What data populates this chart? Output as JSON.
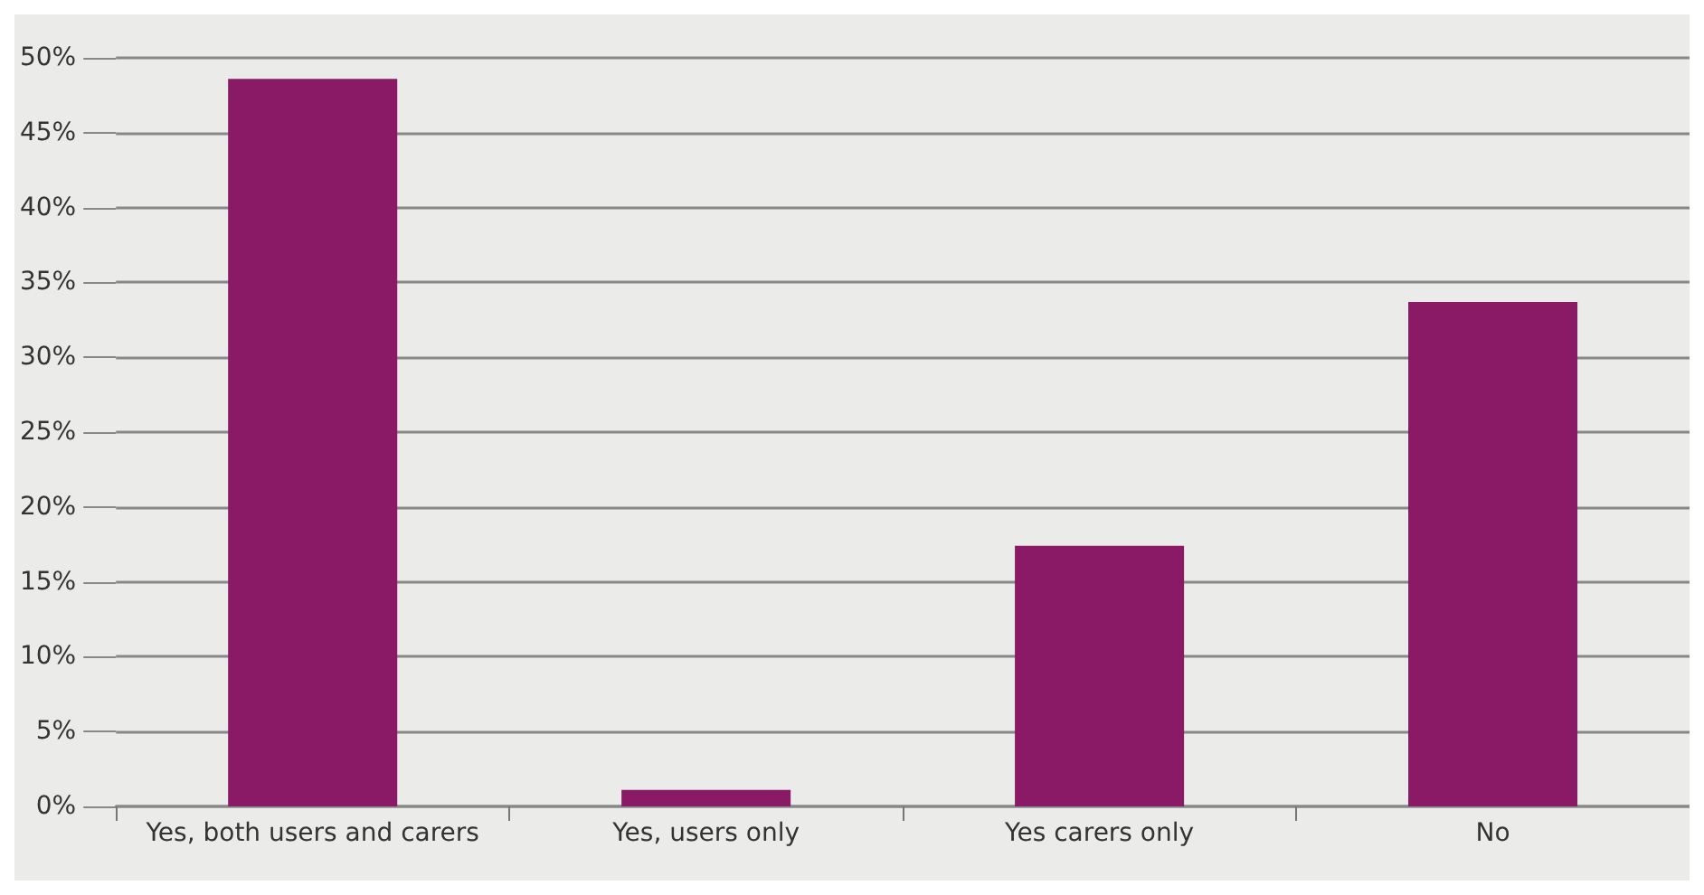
{
  "chart_data": {
    "type": "bar",
    "categories": [
      "Yes, both users and carers",
      "Yes, users only",
      "Yes carers only",
      "No"
    ],
    "values": [
      48.6,
      1.1,
      17.4,
      33.7
    ],
    "color": "#8b1a66",
    "ylim": [
      0,
      50
    ],
    "yticks": [
      {
        "value": 0,
        "label": "0%"
      },
      {
        "value": 5,
        "label": "5%"
      },
      {
        "value": 10,
        "label": "10%"
      },
      {
        "value": 15,
        "label": "15%"
      },
      {
        "value": 20,
        "label": "20%"
      },
      {
        "value": 25,
        "label": "25%"
      },
      {
        "value": 30,
        "label": "30%"
      },
      {
        "value": 35,
        "label": "35%"
      },
      {
        "value": 40,
        "label": "40%"
      },
      {
        "value": 45,
        "label": "45%"
      },
      {
        "value": 50,
        "label": "50%"
      }
    ],
    "grid": "y"
  }
}
